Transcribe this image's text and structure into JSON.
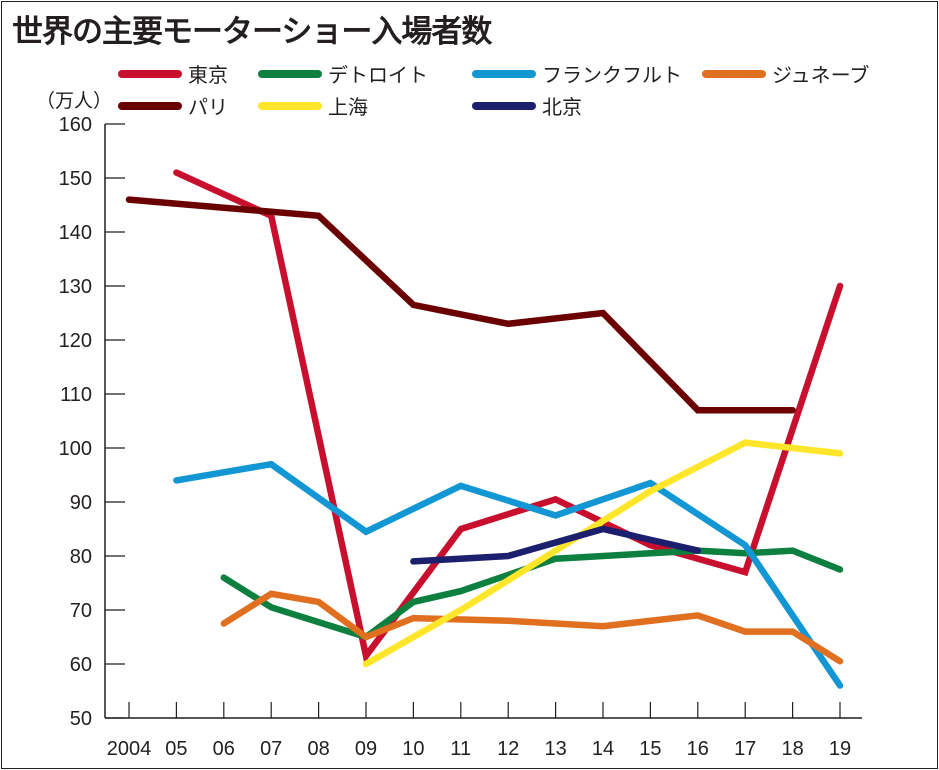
{
  "title": "世界の主要モーターショー入場者数",
  "chart_data": {
    "type": "line",
    "title": "世界の主要モーターショー入場者数",
    "ylabel": "（万人）",
    "xlabel": "",
    "ylim": [
      50,
      160
    ],
    "yticks": [
      50,
      60,
      70,
      80,
      90,
      100,
      110,
      120,
      130,
      140,
      150,
      160
    ],
    "x": [
      2004,
      2005,
      2006,
      2007,
      2008,
      2009,
      2010,
      2011,
      2012,
      2013,
      2014,
      2015,
      2016,
      2017,
      2018,
      2019
    ],
    "xtick_labels": [
      "2004",
      "05",
      "06",
      "07",
      "08",
      "09",
      "10",
      "11",
      "12",
      "13",
      "14",
      "15",
      "16",
      "17",
      "18",
      "19"
    ],
    "legend_position": "top",
    "grid": false,
    "series": [
      {
        "name": "東京",
        "color": "#c8102e",
        "points": [
          [
            2005,
            151
          ],
          [
            2007,
            143
          ],
          [
            2009,
            61.5
          ],
          [
            2011,
            85
          ],
          [
            2013,
            90.5
          ],
          [
            2015,
            82
          ],
          [
            2017,
            77
          ],
          [
            2019,
            130
          ]
        ]
      },
      {
        "name": "デトロイト",
        "color": "#0d8040",
        "points": [
          [
            2006,
            76
          ],
          [
            2007,
            70.5
          ],
          [
            2009,
            65
          ],
          [
            2010,
            71.5
          ],
          [
            2011,
            73.5
          ],
          [
            2013,
            79.5
          ],
          [
            2015,
            80.5
          ],
          [
            2016,
            81
          ],
          [
            2017,
            80.5
          ],
          [
            2018,
            81
          ],
          [
            2019,
            77.5
          ]
        ]
      },
      {
        "name": "フランクフルト",
        "color": "#1296d4",
        "points": [
          [
            2005,
            94
          ],
          [
            2007,
            97
          ],
          [
            2009,
            84.5
          ],
          [
            2011,
            93
          ],
          [
            2013,
            87.5
          ],
          [
            2015,
            93.5
          ],
          [
            2017,
            82
          ],
          [
            2019,
            56
          ]
        ]
      },
      {
        "name": "ジュネーブ",
        "color": "#e07020",
        "points": [
          [
            2006,
            67.5
          ],
          [
            2007,
            73
          ],
          [
            2008,
            71.5
          ],
          [
            2009,
            65
          ],
          [
            2010,
            68.5
          ],
          [
            2012,
            68
          ],
          [
            2014,
            67
          ],
          [
            2016,
            69
          ],
          [
            2017,
            66
          ],
          [
            2018,
            66
          ],
          [
            2019,
            60.5
          ]
        ]
      },
      {
        "name": "パリ",
        "color": "#6b0000",
        "points": [
          [
            2004,
            146
          ],
          [
            2006,
            144.5
          ],
          [
            2008,
            143
          ],
          [
            2010,
            126.5
          ],
          [
            2012,
            123
          ],
          [
            2014,
            125
          ],
          [
            2016,
            107
          ],
          [
            2018,
            107
          ]
        ]
      },
      {
        "name": "上海",
        "color": "#ffe62a",
        "points": [
          [
            2009,
            60
          ],
          [
            2011,
            70
          ],
          [
            2013,
            81
          ],
          [
            2015,
            92
          ],
          [
            2017,
            101
          ],
          [
            2019,
            99
          ]
        ]
      },
      {
        "name": "北京",
        "color": "#1c1f6e",
        "points": [
          [
            2010,
            79
          ],
          [
            2012,
            80
          ],
          [
            2014,
            85
          ],
          [
            2016,
            81
          ]
        ]
      }
    ]
  }
}
